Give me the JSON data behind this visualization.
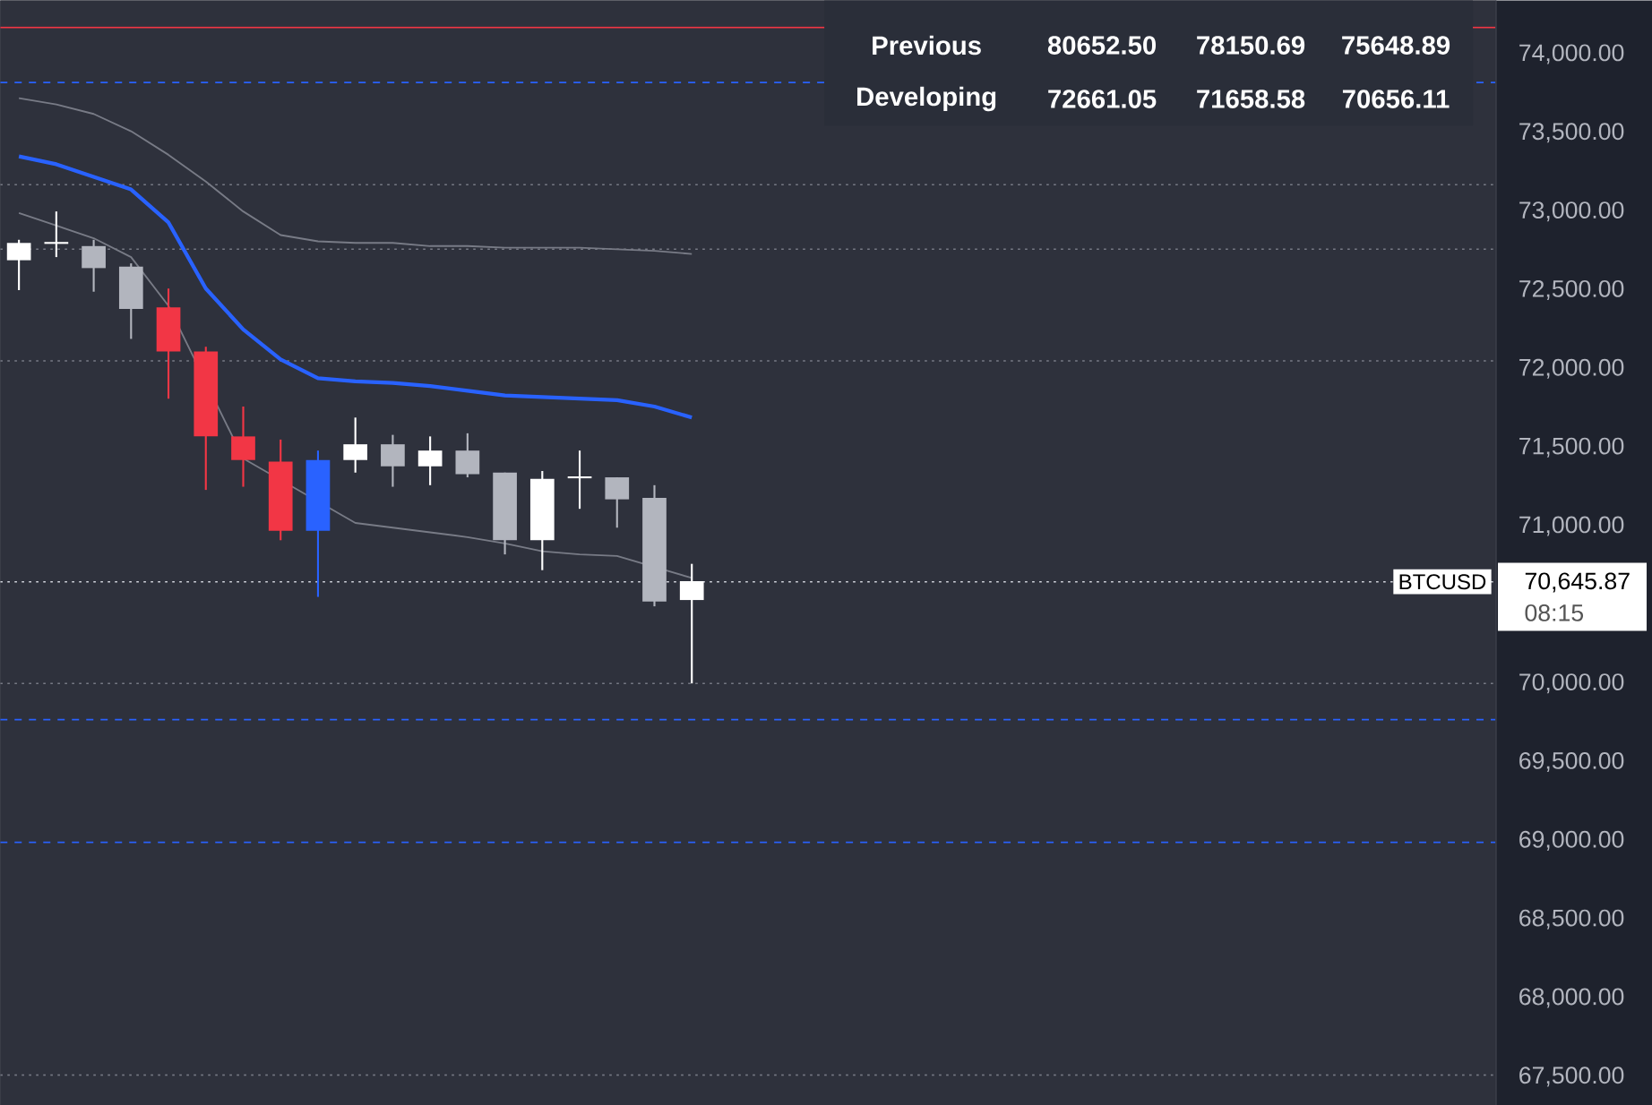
{
  "chart_data": {
    "type": "candlestick",
    "categories": [
      null,
      null,
      null,
      null,
      null,
      null,
      null,
      null,
      null,
      null,
      null,
      null,
      null,
      null,
      null,
      null,
      null,
      null,
      null,
      null,
      null,
      null,
      null,
      null,
      null,
      null,
      null,
      null,
      null,
      null,
      null,
      null,
      null,
      null,
      null,
      null,
      null,
      null,
      null,
      null
    ],
    "ohlc": [
      [
        72690,
        72820,
        72500,
        72800
      ],
      [
        72800,
        73000,
        72710,
        72800
      ],
      [
        72780,
        72820,
        72490,
        72640
      ],
      [
        72650,
        72670,
        72190,
        72380
      ],
      [
        72390,
        72510,
        71810,
        72110
      ],
      [
        72110,
        72140,
        71230,
        71570
      ],
      [
        71570,
        71760,
        71250,
        71420
      ],
      [
        71410,
        71550,
        70910,
        70970
      ],
      [
        70970,
        71480,
        70550,
        71420
      ],
      [
        71420,
        71690,
        71340,
        71520
      ],
      [
        71520,
        71580,
        71250,
        71380
      ],
      [
        71380,
        71570,
        71260,
        71480
      ],
      [
        71480,
        71590,
        71310,
        71330
      ],
      [
        71340,
        71340,
        70820,
        70910
      ],
      [
        70910,
        71350,
        70720,
        71300
      ],
      [
        71310,
        71480,
        71110,
        71310
      ],
      [
        71310,
        71310,
        70990,
        71170
      ],
      [
        71180,
        71260,
        70490,
        70520
      ],
      [
        70530,
        70760,
        70000,
        70650
      ],
      null,
      null,
      null,
      null,
      null,
      null,
      null,
      null,
      null,
      null,
      null,
      null,
      null,
      null,
      null,
      null,
      null,
      null,
      null,
      null,
      null
    ],
    "colors": [
      "#ffffff",
      "#ffffff",
      "#b2b5be",
      "#b2b5be",
      "#f23645",
      "#f23645",
      "#f23645",
      "#f23645",
      "#2962ff",
      "#ffffff",
      "#b2b5be",
      "#ffffff",
      "#b2b5be",
      "#b2b5be",
      "#ffffff",
      "#ffffff",
      "#b2b5be",
      "#b2b5be",
      "#ffffff",
      null,
      null,
      null,
      null,
      null,
      null,
      null,
      null,
      null,
      null,
      null,
      null,
      null,
      null,
      null,
      null,
      null,
      null,
      null,
      null,
      null
    ],
    "series": [
      {
        "type": "line",
        "color": "#787b86",
        "values": [
          73720,
          73680,
          73620,
          73510,
          73360,
          73190,
          73000,
          72850,
          72810,
          72800,
          72800,
          72780,
          72780,
          72770,
          72770,
          72770,
          72760,
          72750,
          72730,
          null,
          null,
          null,
          null,
          null,
          null,
          null,
          null,
          null,
          null,
          null,
          null,
          null,
          null,
          null,
          null,
          null,
          null,
          null,
          null,
          null
        ]
      },
      {
        "type": "line",
        "color": "#2962ff",
        "values": [
          73350,
          73300,
          73220,
          73140,
          72930,
          72510,
          72250,
          72060,
          71940,
          71920,
          71910,
          71890,
          71860,
          71830,
          71820,
          71810,
          71800,
          71760,
          71690,
          null,
          null,
          null,
          null,
          null,
          null,
          null,
          null,
          null,
          null,
          null,
          null,
          null,
          null,
          null,
          null,
          null,
          null,
          null,
          null,
          null
        ]
      },
      {
        "type": "line",
        "color": "#787b86",
        "values": [
          72990,
          72910,
          72830,
          72710,
          72400,
          null,
          71430,
          null,
          null,
          71020,
          70990,
          70960,
          70930,
          70890,
          70840,
          70820,
          70810,
          null,
          70670,
          null,
          null,
          null,
          null,
          null,
          null,
          null,
          null,
          null,
          null,
          null,
          null,
          null,
          null,
          null,
          null,
          null,
          null,
          null,
          null,
          null
        ]
      }
    ],
    "ylim": [
      67318,
      74330
    ],
    "yticks": [
      {
        "value": 67500,
        "label": "67,500.00"
      },
      {
        "value": 68000,
        "label": "68,000.00"
      },
      {
        "value": 68500,
        "label": "68,500.00"
      },
      {
        "value": 69000,
        "label": "69,000.00"
      },
      {
        "value": 69500,
        "label": "69,500.00"
      },
      {
        "value": 70000,
        "label": "70,000.00"
      },
      {
        "value": 71000,
        "label": "71,000.00"
      },
      {
        "value": 71500,
        "label": "71,500.00"
      },
      {
        "value": 72000,
        "label": "72,000.00"
      },
      {
        "value": 72500,
        "label": "72,500.00"
      },
      {
        "value": 73000,
        "label": "73,000.00"
      },
      {
        "value": 73500,
        "label": "73,500.00"
      },
      {
        "value": 74000,
        "label": "74,000.00"
      }
    ],
    "ref_lines": [
      {
        "axis": "y",
        "value": 74170,
        "color": "#f23645",
        "line_style": "solid"
      },
      {
        "axis": "y",
        "value": 73820,
        "color": "#2962ff",
        "line_style": "dashed"
      },
      {
        "axis": "y",
        "value": 73170,
        "color": "#787b86",
        "line_style": "dotted"
      },
      {
        "axis": "y",
        "value": 72760,
        "color": "#787b86",
        "line_style": "dotted"
      },
      {
        "axis": "y",
        "value": 72050,
        "color": "#787b86",
        "line_style": "dotted"
      },
      {
        "axis": "y",
        "value": 70000,
        "color": "#787b86",
        "line_style": "dotted"
      },
      {
        "axis": "y",
        "value": 69770,
        "color": "#2962ff",
        "line_style": "dashed"
      },
      {
        "axis": "y",
        "value": 68990,
        "color": "#2962ff",
        "line_style": "dashed"
      },
      {
        "axis": "y",
        "value": 67510,
        "color": "#787b86",
        "line_style": "dotted"
      },
      {
        "axis": "y",
        "value": 70646,
        "color": "#d1d4dc",
        "line_style": "dotted",
        "label": "BTCUSD"
      }
    ],
    "annotations": [
      "Previous",
      "80652.50",
      "78150.69",
      "75648.89",
      "Developing",
      "72661.05",
      "71658.58",
      "70656.11",
      "70,645.87",
      "08:15"
    ],
    "marker": "none",
    "grid": false
  }
}
